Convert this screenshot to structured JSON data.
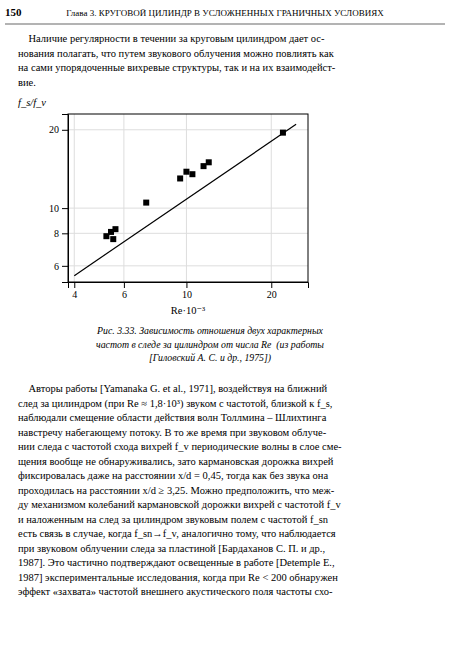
{
  "page_number": "150",
  "header_text": "Глава 3. КРУГОВОЙ ЦИЛИНДР В УСЛОЖНЕННЫХ ГРАНИЧНЫХ УСЛОВИЯХ",
  "intro_text_lines": [
    "    Наличие регулярности в течении за круговым цилиндром дает ос-",
    "нования полагать, что путем звукового облучения можно повлиять как",
    "на сами упорядоченные вихревые структуры, так и на их взаимодейст-",
    "вие."
  ],
  "chart_data": {
    "type": "scatter",
    "x_label": "Re·10⁻³",
    "y_label": "f_s/f_v",
    "log": true,
    "grid": true,
    "xlim": [
      3.8,
      27.0
    ],
    "ylim": [
      5.2,
      23.0
    ],
    "xticks": [
      4,
      6,
      10,
      20
    ],
    "yticks": [
      6,
      8,
      10,
      20
    ],
    "series": [
      {
        "type": "scatter",
        "marker": "square",
        "color": "#000000",
        "x": [
          5.2,
          5.4,
          5.5,
          5.6,
          7.2,
          9.5,
          10.0,
          10.5,
          11.5,
          12.0,
          22.0
        ],
        "values": [
          7.8,
          8.1,
          7.6,
          8.3,
          10.5,
          13.0,
          13.8,
          13.5,
          14.5,
          15.0,
          19.5
        ]
      },
      {
        "type": "line",
        "color": "#000000",
        "x": [
          4.0,
          24.5
        ],
        "values": [
          5.5,
          21.0
        ]
      }
    ]
  },
  "caption_lines": [
    "Рис. 3.33. Зависимость отношения двух характерных",
    "частот в следе за цилиндром от числа Re  (из работы",
    "[Гиловский А. С. и др., 1975])"
  ],
  "body_lines": [
    "    Авторы работы [Yamanaka G. et al., 1971], воздействуя на ближний",
    "след за цилиндром (при Re ≈ 1,8·10³) звуком с частотой, близкой к f_s,",
    "наблюдали смещение области действия волн Толлмина – Шлихтинга",
    "навстречу набегающему потоку. В то же время при звуковом облуче-",
    "нии следа с частотой схода вихрей f_v периодические волны в слое сме-",
    "щения вообще не обнаруживались, зато кармановская дорожка вихрей",
    "фиксировалась даже на расстоянии x/d = 0,45, тогда как без звука она",
    "проходилась на расстоянии x/d ≥ 3,25. Можно предположить, что меж-",
    "ду механизмом колебаний кармановской дорожки вихрей с частотой f_v",
    "и наложенным на след за цилиндром звуковым полем с частотой f_sn",
    "есть связь в случае, когда f_sn→f_v, аналогично тому, что наблюдается",
    "при звуковом облучении следа за пластиной [Бардаханов С. П. и др.,",
    "1987]. Это частично подтверждают освещенные в работе [Detemple E.,",
    "1987] экспериментальные исследования, когда при Re < 200 обнаружен",
    "эффект «захвата» частотой внешнего акустического поля частоты схо-"
  ]
}
